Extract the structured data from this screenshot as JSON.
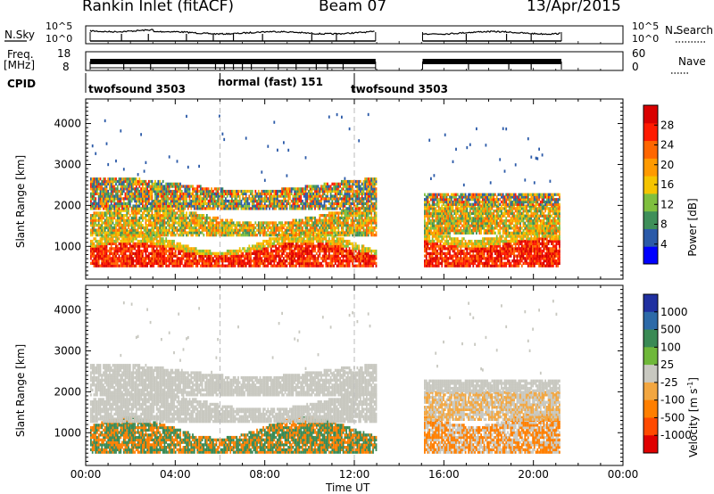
{
  "header": {
    "title": "Rankin Inlet (fitACF)",
    "beam": "Beam 07",
    "date": "13/Apr/2015"
  },
  "panels": {
    "nsky_label": "N.Sky",
    "nsky_ticks": [
      "10^5",
      "10^0"
    ],
    "nsearch_label": "N.Search",
    "nsearch_ticks": [
      "10^5",
      "10^0"
    ],
    "freq_label": "Freq.",
    "freq_unit": "[MHz]",
    "freq_ticks": [
      "18",
      "8"
    ],
    "nave_label": "Nave",
    "nave_ticks": [
      "60",
      "0"
    ],
    "cpid_label": "CPID",
    "cpid_segments": [
      "twofsound 3503",
      "normal (fast) 151",
      "twofsound 3503"
    ]
  },
  "colors": {
    "power": [
      "#0000ff",
      "#2b5aa8",
      "#3f8f5a",
      "#7fbf3f",
      "#f5c400",
      "#ff9a00",
      "#ff6600",
      "#ff1a00",
      "#d90000"
    ],
    "velocity": [
      "#2030a0",
      "#2d6aa8",
      "#3a8a55",
      "#6fb83a",
      "#c8c8c0",
      "#f2a640",
      "#ff7f00",
      "#ff4a00",
      "#e00000"
    ]
  },
  "chart_data": [
    {
      "type": "heatmap",
      "name": "power",
      "ylabel": "Slant Range [km]",
      "xlabel": "Time UT",
      "x_ticks": [
        "00:00",
        "04:00",
        "08:00",
        "12:00",
        "16:00",
        "20:00",
        "00:00"
      ],
      "xlim_hours": [
        0,
        24
      ],
      "ylim": [
        200,
        4600
      ],
      "y_ticks": [
        1000,
        2000,
        3000,
        4000
      ],
      "colorbar_label": "Power [dB]",
      "colorbar_ticks": [
        4,
        8,
        12,
        16,
        20,
        24,
        28
      ],
      "colorbar_range": [
        0,
        32
      ]
    },
    {
      "type": "heatmap",
      "name": "velocity",
      "ylabel": "Slant Range [km]",
      "xlabel": "Time UT",
      "x_ticks": [
        "00:00",
        "04:00",
        "08:00",
        "12:00",
        "16:00",
        "20:00",
        "00:00"
      ],
      "xlim_hours": [
        0,
        24
      ],
      "ylim": [
        200,
        4600
      ],
      "y_ticks": [
        1000,
        2000,
        3000,
        4000
      ],
      "colorbar_label": "Velocity [m s",
      "colorbar_superscript": "-1",
      "colorbar_label_end": "]",
      "colorbar_ticks": [
        "1000",
        "500",
        "100",
        "25",
        "-25",
        "-100",
        "-500",
        "-1000"
      ]
    }
  ]
}
